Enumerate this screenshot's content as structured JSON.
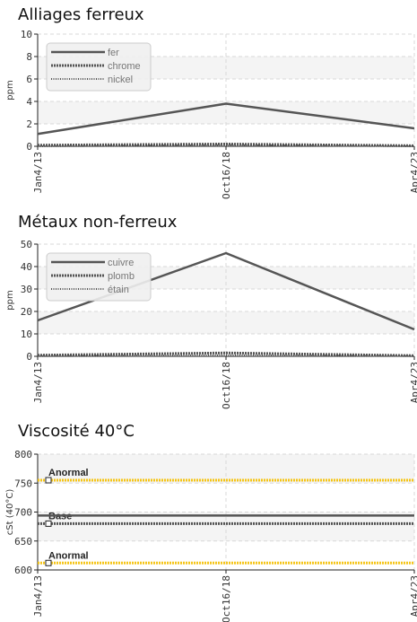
{
  "chart_data": [
    {
      "type": "line",
      "title": "Alliages ferreux",
      "ylabel": "ppm",
      "ylim": [
        0,
        10
      ],
      "yticks": [
        0,
        2,
        4,
        6,
        8,
        10
      ],
      "x_labels": [
        "Jan4/13",
        "Oct16/18",
        "Apr4/23"
      ],
      "grid": true,
      "legend_position": "top-left",
      "series": [
        {
          "name": "fer",
          "values": [
            1.1,
            3.8,
            1.6
          ],
          "color": "#555555",
          "style": "solid"
        },
        {
          "name": "chrome",
          "values": [
            0.1,
            0.2,
            0.05
          ],
          "color": "#555555",
          "style": "dense"
        },
        {
          "name": "nickel",
          "values": [
            0.0,
            0.1,
            0.0
          ],
          "color": "#555555",
          "style": "dotted"
        }
      ]
    },
    {
      "type": "line",
      "title": "Métaux non-ferreux",
      "ylabel": "ppm",
      "ylim": [
        0,
        50
      ],
      "yticks": [
        0,
        10,
        20,
        30,
        40,
        50
      ],
      "x_labels": [
        "Jan4/13",
        "Oct16/18",
        "Apr4/23"
      ],
      "grid": true,
      "legend_position": "top-left",
      "series": [
        {
          "name": "cuivre",
          "values": [
            16,
            46,
            12
          ],
          "color": "#555555",
          "style": "solid"
        },
        {
          "name": "plomb",
          "values": [
            0.5,
            1.5,
            0.3
          ],
          "color": "#555555",
          "style": "dense"
        },
        {
          "name": "étain",
          "values": [
            0.1,
            0.5,
            0.1
          ],
          "color": "#555555",
          "style": "dotted"
        }
      ]
    },
    {
      "type": "line",
      "title": "Viscosité 40°C",
      "ylabel": "cSt (40°C)",
      "ylim": [
        600,
        800
      ],
      "yticks": [
        600,
        650,
        700,
        750,
        800
      ],
      "x_labels": [
        "Jan4/13",
        "Oct16/18",
        "Apr4/23"
      ],
      "grid": true,
      "series": [
        {
          "values": [
            694,
            694,
            694
          ],
          "color": "#555555",
          "style": "solid"
        }
      ],
      "reference_lines": [
        {
          "label": "Anormal",
          "value": 755,
          "color": "#f5c518",
          "style": "dense"
        },
        {
          "label": "Base",
          "value": 680,
          "color": "#555555",
          "style": "dense"
        },
        {
          "label": "Anormal",
          "value": 612,
          "color": "#f5c518",
          "style": "dense"
        }
      ]
    }
  ]
}
